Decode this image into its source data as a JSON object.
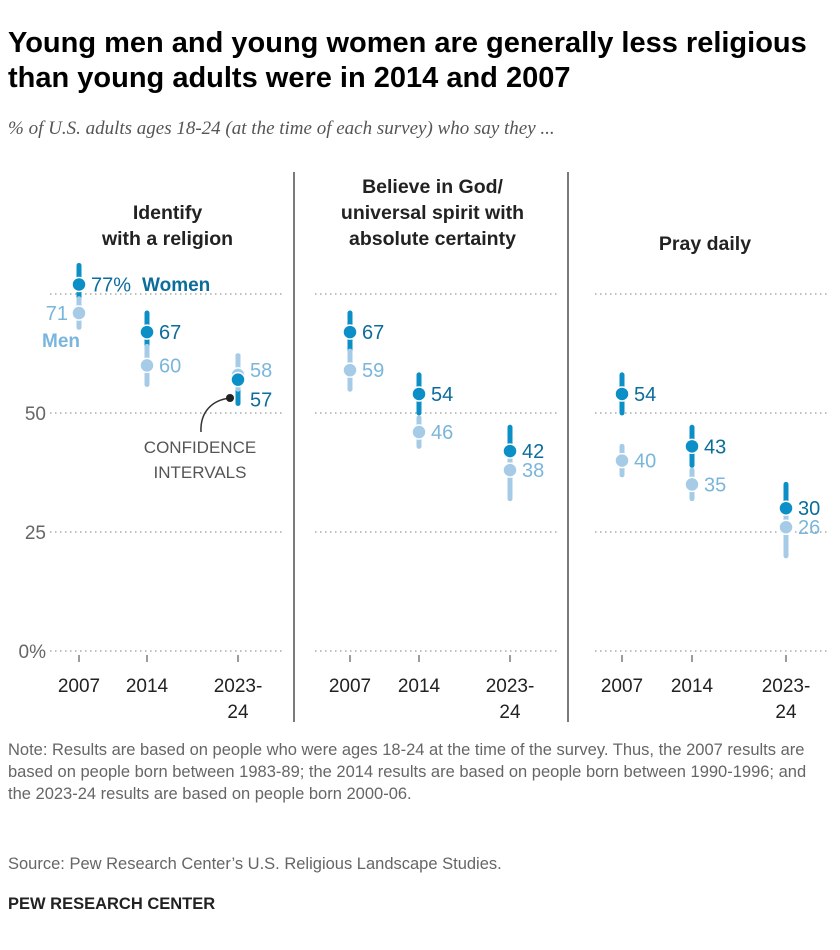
{
  "title": "Young men and young women are generally less religious than young adults were in 2014 and 2007",
  "subtitle": "% of U.S. adults ages 18-24 (at the time of each survey) who say they ...",
  "note": "Note: Results are based on people who were ages 18-24 at the time of the survey. Thus, the 2007 results are based on people born between 1983-89; the 2014 results are based on people born between 1990-1996; and the 2023-24 results are based on people born 2000-06.",
  "source": "Source: Pew Research Center’s U.S. Religious Landscape Studies.",
  "logo": "PEW RESEARCH CENTER",
  "colors": {
    "women": "#0b8fc6",
    "women_label": "#0b6d9c",
    "men": "#a6cbe7",
    "men_label": "#7ab6dc"
  },
  "chart_data": {
    "type": "scatter",
    "categories": [
      "2007",
      "2014",
      "2023-24"
    ],
    "category_labels": [
      [
        "2007"
      ],
      [
        "2014"
      ],
      [
        "2023-",
        "24"
      ]
    ],
    "ylim": [
      0,
      80
    ],
    "yticks": [
      {
        "v": 0,
        "label": "0%"
      },
      {
        "v": 25,
        "label": "25"
      },
      {
        "v": 50,
        "label": "50"
      },
      {
        "v": 75,
        "label": ""
      }
    ],
    "series_labels": {
      "women": "Women",
      "men": "Men"
    },
    "annotation": [
      "CONFIDENCE",
      "INTERVALS"
    ],
    "panels": [
      {
        "title": [
          "Identify",
          "with a religion"
        ],
        "women": [
          {
            "v": 77,
            "lo": 73,
            "hi": 81,
            "label": "77%"
          },
          {
            "v": 67,
            "lo": 63,
            "hi": 71,
            "label": "67"
          },
          {
            "v": 57,
            "lo": 52,
            "hi": 62,
            "label": "57"
          }
        ],
        "men": [
          {
            "v": 71,
            "lo": 68,
            "hi": 74,
            "label": "71"
          },
          {
            "v": 60,
            "lo": 56,
            "hi": 64,
            "label": "60"
          },
          {
            "v": 58,
            "lo": 55,
            "hi": 62,
            "label": "58"
          }
        ]
      },
      {
        "title": [
          "Believe in God/",
          "universal spirit with",
          "absolute certainty"
        ],
        "women": [
          {
            "v": 67,
            "lo": 63,
            "hi": 71,
            "label": "67"
          },
          {
            "v": 54,
            "lo": 50,
            "hi": 58,
            "label": "54"
          },
          {
            "v": 42,
            "lo": 37,
            "hi": 47,
            "label": "42"
          }
        ],
        "men": [
          {
            "v": 59,
            "lo": 55,
            "hi": 63,
            "label": "59"
          },
          {
            "v": 46,
            "lo": 43,
            "hi": 49,
            "label": "46"
          },
          {
            "v": 38,
            "lo": 32,
            "hi": 43,
            "label": "38"
          }
        ]
      },
      {
        "title": [
          "Pray daily"
        ],
        "women": [
          {
            "v": 54,
            "lo": 50,
            "hi": 58,
            "label": "54"
          },
          {
            "v": 43,
            "lo": 39,
            "hi": 47,
            "label": "43"
          },
          {
            "v": 30,
            "lo": 25,
            "hi": 35,
            "label": "30"
          }
        ],
        "men": [
          {
            "v": 40,
            "lo": 37,
            "hi": 43,
            "label": "40"
          },
          {
            "v": 35,
            "lo": 32,
            "hi": 38,
            "label": "35"
          },
          {
            "v": 26,
            "lo": 20,
            "hi": 31,
            "label": "26"
          }
        ]
      }
    ]
  }
}
